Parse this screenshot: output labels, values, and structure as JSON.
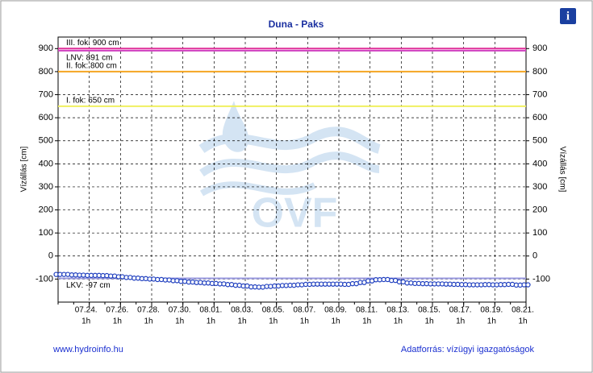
{
  "chart_data": {
    "type": "line",
    "title": "Duna - Paks",
    "y_label": "Vízállás [cm]",
    "y2_label": "Vízállás [cm]",
    "ylim": [
      -200,
      950
    ],
    "yticks": [
      -100,
      0,
      100,
      200,
      300,
      400,
      500,
      600,
      700,
      800,
      900
    ],
    "grid": true,
    "categories": [
      null,
      null,
      null,
      null,
      {
        "date": "07.24.",
        "time": "1h"
      },
      null,
      null,
      null,
      {
        "date": "07.26.",
        "time": "1h"
      },
      null,
      null,
      null,
      {
        "date": "07.28.",
        "time": "1h"
      },
      null,
      null,
      null,
      {
        "date": "07.30.",
        "time": "1h"
      },
      null,
      null,
      null,
      {
        "date": "08.01.",
        "time": "1h"
      },
      null,
      null,
      null,
      {
        "date": "08.03.",
        "time": "1h"
      },
      null,
      null,
      null,
      {
        "date": "08.05.",
        "time": "1h"
      },
      null,
      null,
      null,
      {
        "date": "08.07.",
        "time": "1h"
      },
      null,
      null,
      null,
      {
        "date": "08.09.",
        "time": "1h"
      },
      null,
      null,
      null,
      {
        "date": "08.11.",
        "time": "1h"
      },
      null,
      null,
      null,
      {
        "date": "08.13.",
        "time": "1h"
      },
      null,
      null,
      null,
      {
        "date": "08.15.",
        "time": "1h"
      },
      null,
      null,
      null,
      {
        "date": "08.17.",
        "time": "1h"
      },
      null,
      null,
      null,
      {
        "date": "08.19.",
        "time": "1h"
      },
      null,
      null,
      null,
      {
        "date": "08.21.",
        "time": "1h"
      }
    ],
    "series": [
      {
        "color": "#1f3fbf",
        "values": [
          -80,
          -80,
          -82,
          -83,
          -84,
          -84,
          -85,
          -87,
          -90,
          -93,
          -96,
          -98,
          -100,
          -102,
          -104,
          -107,
          -110,
          -113,
          -115,
          -117,
          -119,
          -121,
          -124,
          -127,
          -130,
          -134,
          -135,
          -132,
          -130,
          -128,
          -127,
          -125,
          -123,
          -122,
          -122,
          -122,
          -122,
          -123,
          -120,
          -115,
          -108,
          -103,
          -102,
          -106,
          -112,
          -117,
          -119,
          -120,
          -121,
          -121,
          -122,
          -123,
          -124,
          -125,
          -125,
          -124,
          -125,
          -124,
          -123,
          -126,
          -125
        ]
      }
    ],
    "thresholds": [
      {
        "label": "III. fok: 900 cm",
        "value": 900,
        "color": "#e0309a"
      },
      {
        "label": "LNV: 891 cm",
        "value": 891,
        "color": "#d040c0"
      },
      {
        "label": "II. fok: 800 cm",
        "value": 800,
        "color": "#f5a623"
      },
      {
        "label": "I. fok: 650 cm",
        "value": 650,
        "color": "#f0f060"
      },
      {
        "label": "LKV: -97 cm",
        "value": -97,
        "color": "#9a9ae0"
      }
    ],
    "watermark": "OVF",
    "footer_left": "www.hydroinfo.hu",
    "footer_right": "Adatforrás: vízügyi igazgatóságok",
    "info_icon": "i"
  }
}
